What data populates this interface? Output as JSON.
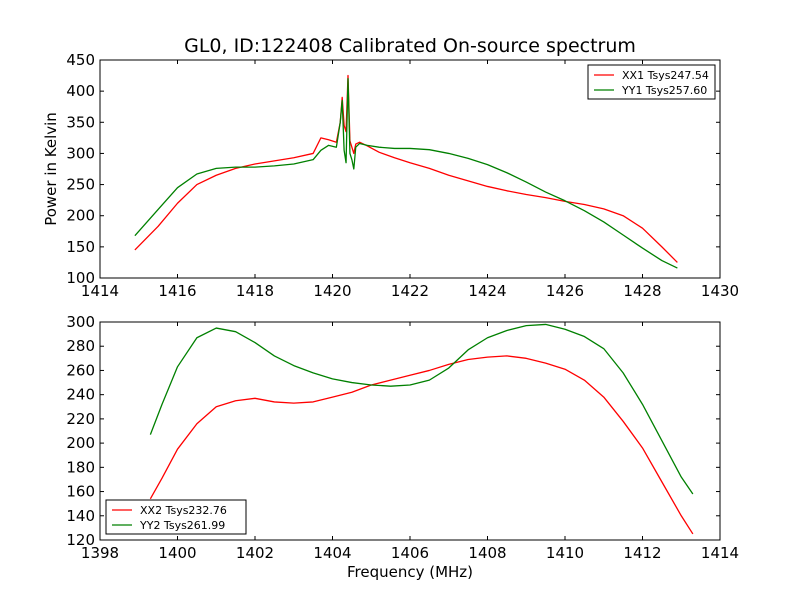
{
  "chart_data": [
    {
      "type": "line",
      "title": "GL0, ID:122408 Calibrated On-source spectrum",
      "xlabel": "",
      "ylabel": "Power in Kelvin",
      "xlim": [
        1414,
        1430
      ],
      "ylim": [
        100,
        450
      ],
      "xticks": [
        1414,
        1416,
        1418,
        1420,
        1422,
        1424,
        1426,
        1428,
        1430
      ],
      "yticks": [
        100,
        150,
        200,
        250,
        300,
        350,
        400,
        450
      ],
      "legend_position": "top-right",
      "series": [
        {
          "name": "XX1 Tsys247.54",
          "color": "#ff0000",
          "x": [
            1414.9,
            1415.5,
            1416,
            1416.5,
            1417,
            1417.5,
            1418,
            1418.5,
            1419,
            1419.5,
            1419.7,
            1419.9,
            1420.1,
            1420.2,
            1420.25,
            1420.3,
            1420.35,
            1420.4,
            1420.45,
            1420.5,
            1420.55,
            1420.6,
            1420.7,
            1420.9,
            1421.2,
            1421.6,
            1422,
            1422.5,
            1423,
            1423.5,
            1424,
            1424.5,
            1425,
            1425.5,
            1426,
            1426.5,
            1427,
            1427.5,
            1428,
            1428.5,
            1428.9
          ],
          "y": [
            145,
            183,
            220,
            250,
            265,
            276,
            283,
            288,
            293,
            300,
            325,
            322,
            318,
            350,
            390,
            345,
            335,
            425,
            320,
            310,
            300,
            315,
            318,
            312,
            302,
            293,
            285,
            276,
            265,
            256,
            247,
            240,
            234,
            229,
            223,
            218,
            211,
            200,
            180,
            150,
            125
          ]
        },
        {
          "name": "YY1 Tsys257.60",
          "color": "#008000",
          "x": [
            1414.9,
            1415.5,
            1416,
            1416.5,
            1417,
            1417.5,
            1418,
            1418.5,
            1419,
            1419.5,
            1419.7,
            1419.9,
            1420.1,
            1420.2,
            1420.25,
            1420.3,
            1420.35,
            1420.4,
            1420.45,
            1420.5,
            1420.55,
            1420.6,
            1420.7,
            1420.9,
            1421.2,
            1421.6,
            1422,
            1422.5,
            1423,
            1423.5,
            1424,
            1424.5,
            1425,
            1425.5,
            1426,
            1426.5,
            1427,
            1427.5,
            1428,
            1428.5,
            1428.9
          ],
          "y": [
            168,
            210,
            245,
            267,
            276,
            278,
            278,
            280,
            283,
            290,
            305,
            313,
            310,
            350,
            385,
            305,
            285,
            420,
            300,
            290,
            275,
            310,
            316,
            313,
            310,
            308,
            308,
            306,
            300,
            292,
            282,
            269,
            254,
            238,
            224,
            208,
            190,
            169,
            148,
            128,
            116
          ]
        }
      ]
    },
    {
      "type": "line",
      "title": "",
      "xlabel": "Frequency (MHz)",
      "ylabel": "",
      "xlim": [
        1398,
        1414
      ],
      "ylim": [
        120,
        300
      ],
      "xticks": [
        1398,
        1400,
        1402,
        1404,
        1406,
        1408,
        1410,
        1412,
        1414
      ],
      "yticks": [
        120,
        140,
        160,
        180,
        200,
        220,
        240,
        260,
        280,
        300
      ],
      "legend_position": "bottom-left",
      "series": [
        {
          "name": "XX2 Tsys232.76",
          "color": "#ff0000",
          "x": [
            1399.3,
            1399.6,
            1400,
            1400.5,
            1401,
            1401.5,
            1402,
            1402.5,
            1403,
            1403.5,
            1404,
            1404.5,
            1405,
            1405.5,
            1406,
            1406.5,
            1407,
            1407.5,
            1408,
            1408.5,
            1409,
            1409.5,
            1410,
            1410.5,
            1411,
            1411.5,
            1412,
            1412.5,
            1413,
            1413.3
          ],
          "y": [
            154,
            171,
            195,
            216,
            230,
            235,
            237,
            234,
            233,
            234,
            238,
            242,
            248,
            252,
            256,
            260,
            265,
            269,
            271,
            272,
            270,
            266,
            261,
            252,
            238,
            218,
            196,
            168,
            140,
            125
          ]
        },
        {
          "name": "YY2 Tsys261.99",
          "color": "#008000",
          "x": [
            1399.3,
            1399.6,
            1400,
            1400.5,
            1401,
            1401.5,
            1402,
            1402.5,
            1403,
            1403.5,
            1404,
            1404.5,
            1405,
            1405.5,
            1406,
            1406.5,
            1407,
            1407.5,
            1408,
            1408.5,
            1409,
            1409.5,
            1410,
            1410.5,
            1411,
            1411.5,
            1412,
            1412.5,
            1413,
            1413.3
          ],
          "y": [
            207,
            232,
            263,
            287,
            295,
            292,
            283,
            272,
            264,
            258,
            253,
            250,
            248,
            247,
            248,
            252,
            262,
            277,
            287,
            293,
            297,
            298,
            294,
            288,
            278,
            258,
            232,
            202,
            172,
            158
          ]
        }
      ]
    }
  ]
}
